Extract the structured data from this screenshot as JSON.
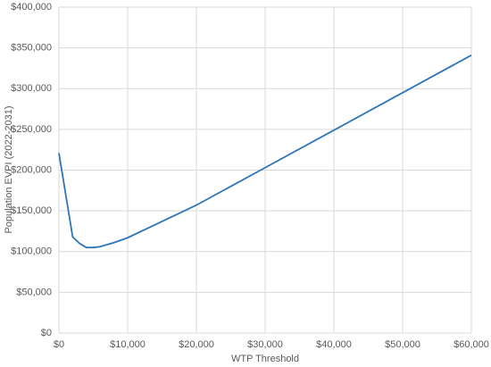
{
  "chart_data": {
    "type": "line",
    "x_label": "WTP Threshold",
    "y_label": "Population EVPI (2022-2031)",
    "x": [
      0,
      2000,
      3000,
      4000,
      5000,
      6000,
      8000,
      10000,
      20000,
      30000,
      40000,
      50000,
      60000
    ],
    "series": [
      {
        "color": "#2e75b6",
        "values": [
          221000,
          118000,
          110000,
          105000,
          105000,
          106000,
          111000,
          117000,
          157000,
          203000,
          249000,
          295000,
          341000
        ]
      }
    ],
    "xlim": [
      0,
      60000
    ],
    "ylim": [
      0,
      400000
    ],
    "xticks": [
      {
        "value": 0,
        "label": "$0"
      },
      {
        "value": 10000,
        "label": "$10,000"
      },
      {
        "value": 20000,
        "label": "$20,000"
      },
      {
        "value": 30000,
        "label": "$30,000"
      },
      {
        "value": 40000,
        "label": "$40,000"
      },
      {
        "value": 50000,
        "label": "$50,000"
      },
      {
        "value": 60000,
        "label": "$60,000"
      }
    ],
    "yticks": [
      {
        "value": 0,
        "label": "$0"
      },
      {
        "value": 50000,
        "label": "$50,000"
      },
      {
        "value": 100000,
        "label": "$100,000"
      },
      {
        "value": 150000,
        "label": "$150,000"
      },
      {
        "value": 200000,
        "label": "$200,000"
      },
      {
        "value": 250000,
        "label": "$250,000"
      },
      {
        "value": 300000,
        "label": "$300,000"
      },
      {
        "value": 350000,
        "label": "$350,000"
      },
      {
        "value": 400000,
        "label": "$400,000"
      }
    ],
    "grid": true
  }
}
